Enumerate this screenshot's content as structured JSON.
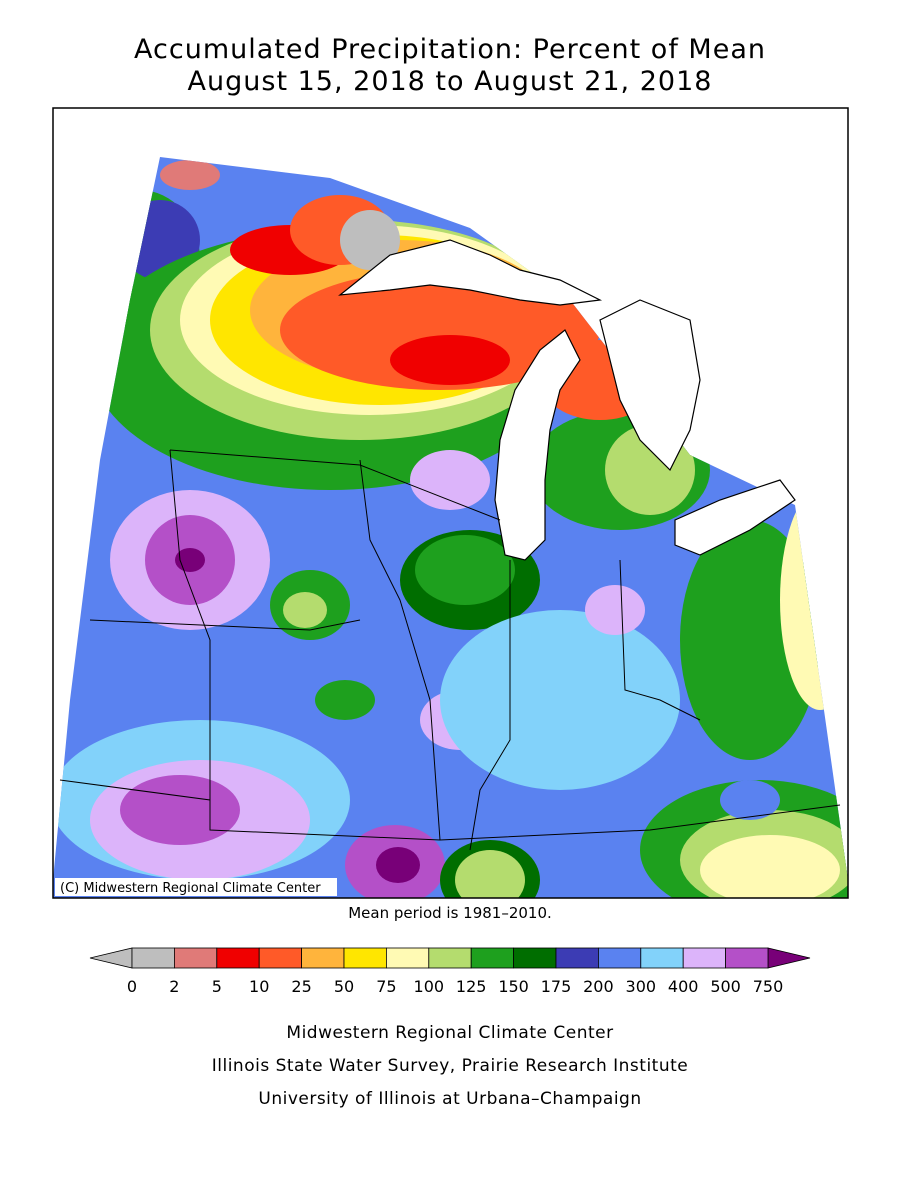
{
  "header": {
    "title_line1": "Accumulated Precipitation: Percent of Mean",
    "title_line2": "August 15, 2018 to August 21, 2018"
  },
  "map": {
    "copyright": "(C) Midwestern Regional Climate Center",
    "footnote": "Mean period is 1981–2010."
  },
  "legend": {
    "ticks": [
      0,
      2,
      5,
      10,
      25,
      50,
      75,
      100,
      125,
      150,
      175,
      200,
      300,
      400,
      500,
      750
    ],
    "colors": [
      "#bebebe",
      "#e07a78",
      "#f00000",
      "#ff5a28",
      "#ffb43c",
      "#ffe600",
      "#fffab4",
      "#b4dc6e",
      "#1ea01e",
      "#006e00",
      "#3c3cb4",
      "#5a82f0",
      "#82d2fa",
      "#dcb4fa",
      "#b450c8"
    ],
    "under_color": "#bebebe",
    "over_color": "#780078"
  },
  "credits": {
    "line1": "Midwestern Regional Climate Center",
    "line2": "Illinois State Water Survey, Prairie Research Institute",
    "line3": "University of Illinois at Urbana–Champaign"
  }
}
